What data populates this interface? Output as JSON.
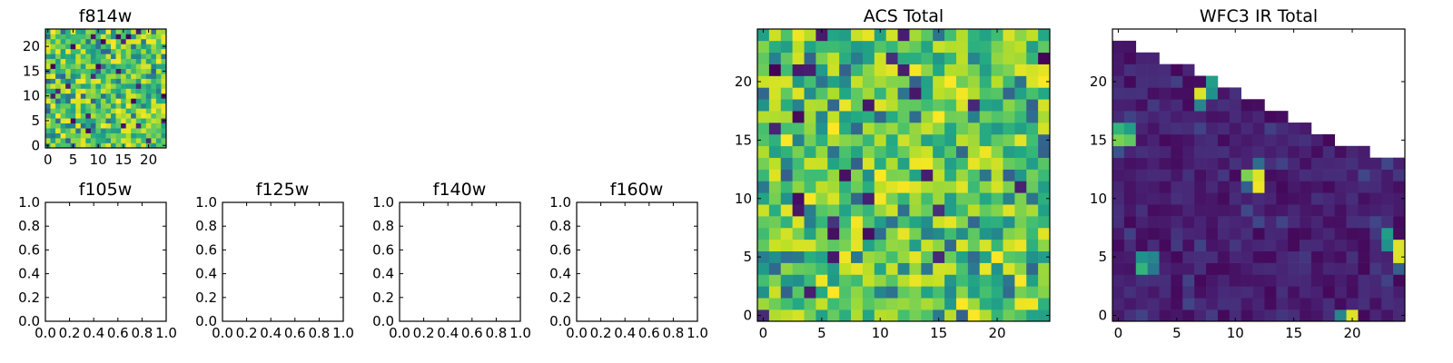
{
  "chart_data": [
    {
      "type": "heatmap",
      "title": "f814w",
      "colormap": "viridis",
      "grid_size": [
        24,
        24
      ],
      "x_ticks": [
        0,
        5,
        10,
        15,
        20
      ],
      "y_ticks": [
        0,
        5,
        10,
        15,
        20
      ],
      "x_tick_labels": [
        "0",
        "5",
        "10",
        "15",
        "20"
      ],
      "y_tick_labels": [
        "0",
        "5",
        "10",
        "15",
        "20"
      ],
      "xlim": [
        -0.5,
        23.5
      ],
      "ylim": [
        -0.5,
        23.5
      ],
      "value_range": [
        0,
        1
      ],
      "values_description": "",
      "seed": 814
    },
    {
      "type": "empty",
      "title": "f105w",
      "xlim": [
        0,
        1
      ],
      "ylim": [
        0,
        1
      ],
      "x_tick_labels": [
        "0.0",
        "0.2",
        "0.4",
        "0.6",
        "0.8",
        "1.0"
      ],
      "y_tick_labels": [
        "0.0",
        "0.2",
        "0.4",
        "0.6",
        "0.8",
        "1.0"
      ]
    },
    {
      "type": "empty",
      "title": "f125w",
      "xlim": [
        0,
        1
      ],
      "ylim": [
        0,
        1
      ],
      "x_tick_labels": [
        "0.0",
        "0.2",
        "0.4",
        "0.6",
        "0.8",
        "1.0"
      ],
      "y_tick_labels": [
        "0.0",
        "0.2",
        "0.4",
        "0.6",
        "0.8",
        "1.0"
      ]
    },
    {
      "type": "empty",
      "title": "f140w",
      "xlim": [
        0,
        1
      ],
      "ylim": [
        0,
        1
      ],
      "x_tick_labels": [
        "0.0",
        "0.2",
        "0.4",
        "0.6",
        "0.8",
        "1.0"
      ],
      "y_tick_labels": [
        "0.0",
        "0.2",
        "0.4",
        "0.6",
        "0.8",
        "1.0"
      ]
    },
    {
      "type": "empty",
      "title": "f160w",
      "xlim": [
        0,
        1
      ],
      "ylim": [
        0,
        1
      ],
      "x_tick_labels": [
        "0.0",
        "0.2",
        "0.4",
        "0.6",
        "0.8",
        "1.0"
      ],
      "y_tick_labels": [
        "0.0",
        "0.2",
        "0.4",
        "0.6",
        "0.8",
        "1.0"
      ]
    },
    {
      "type": "heatmap",
      "title": "ACS Total",
      "colormap": "viridis",
      "grid_size": [
        24,
        24
      ],
      "x_ticks": [
        0,
        5,
        10,
        15,
        20
      ],
      "y_ticks": [
        0,
        5,
        10,
        15,
        20
      ],
      "x_tick_labels": [
        "0",
        "5",
        "10",
        "15",
        "20"
      ],
      "y_tick_labels": [
        "0",
        "5",
        "10",
        "15",
        "20"
      ],
      "xlim": [
        -0.5,
        24.5
      ],
      "ylim": [
        -0.5,
        24.5
      ],
      "value_range": [
        0,
        1
      ],
      "values_description": "",
      "seed": 2001
    },
    {
      "type": "heatmap",
      "title": "WFC3 IR Total",
      "colormap": "viridis",
      "grid_size": [
        24,
        24
      ],
      "x_ticks": [
        0,
        5,
        10,
        15,
        20
      ],
      "y_ticks": [
        0,
        5,
        10,
        15,
        20
      ],
      "x_tick_labels": [
        "0",
        "5",
        "10",
        "15",
        "20"
      ],
      "y_tick_labels": [
        "0",
        "5",
        "10",
        "15",
        "20"
      ],
      "xlim": [
        -0.5,
        24.5
      ],
      "ylim": [
        -0.5,
        24.5
      ],
      "value_range": [
        0,
        1
      ],
      "masked_region": "upper-right triangle (white, no data)",
      "row_tops": [
        23,
        23,
        22,
        22,
        21,
        21,
        21,
        20,
        20,
        19,
        19,
        18,
        18,
        17,
        17,
        16,
        16,
        15,
        15,
        14,
        14,
        14,
        13,
        13
      ],
      "bright_pixels": [
        {
          "x": 7,
          "y": 19,
          "v": 0.95
        },
        {
          "x": 8,
          "y": 19,
          "v": 0.5
        },
        {
          "x": 8,
          "y": 20,
          "v": 0.55
        },
        {
          "x": 7,
          "y": 18,
          "v": 0.45
        },
        {
          "x": 0,
          "y": 16,
          "v": 0.65
        },
        {
          "x": 1,
          "y": 16,
          "v": 0.55
        },
        {
          "x": 0,
          "y": 15,
          "v": 0.8
        },
        {
          "x": 1,
          "y": 15,
          "v": 0.75
        },
        {
          "x": 0,
          "y": 14,
          "v": 0.25
        },
        {
          "x": 11,
          "y": 12,
          "v": 0.8
        },
        {
          "x": 12,
          "y": 12,
          "v": 0.95
        },
        {
          "x": 12,
          "y": 11,
          "v": 0.98
        },
        {
          "x": 11,
          "y": 11,
          "v": 0.3
        },
        {
          "x": 12,
          "y": 13,
          "v": 0.35
        },
        {
          "x": 2,
          "y": 5,
          "v": 0.5
        },
        {
          "x": 3,
          "y": 5,
          "v": 0.45
        },
        {
          "x": 2,
          "y": 4,
          "v": 0.65
        },
        {
          "x": 3,
          "y": 4,
          "v": 0.4
        },
        {
          "x": 23,
          "y": 7,
          "v": 0.55
        },
        {
          "x": 23,
          "y": 6,
          "v": 0.5
        },
        {
          "x": 24,
          "y": 6,
          "v": 0.95
        },
        {
          "x": 24,
          "y": 5,
          "v": 0.95
        },
        {
          "x": 24,
          "y": 4,
          "v": 0.3
        },
        {
          "x": 19,
          "y": 0,
          "v": 0.45
        },
        {
          "x": 20,
          "y": 0,
          "v": 0.95
        }
      ],
      "seed": 3003
    }
  ]
}
